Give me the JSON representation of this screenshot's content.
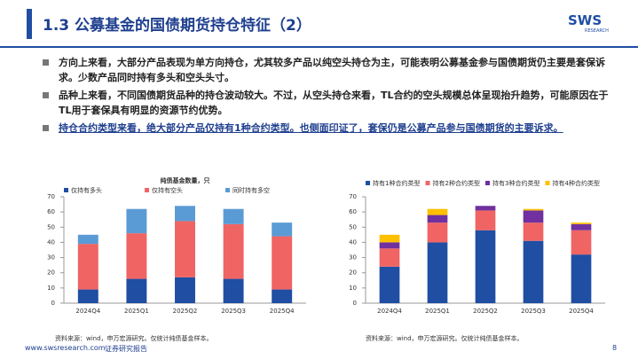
{
  "header": {
    "title": "1.3 公募基金的国债期货持仓特征（2）",
    "logo": "SWS",
    "logo_sub": "RESEARCH"
  },
  "bullets": [
    "方向上来看，大部分产品表现为单方向持仓，尤其较多产品以纯空头持仓为主，可能表明公募基金参与国债期货仍主要是套保诉求。少数产品同时持有多头和空头头寸。",
    "品种上来看，不同国债期货品种的持仓波动较大。不过，从空头持仓来看，TL合约的空头规模总体呈现抬升趋势，可能原因在于TL用于套保具有明显的资源节约优势。",
    "持仓合约类型来看，绝大部分产品仅持有1种合约类型。也侧面印证了，套保仍是公募产品参与国债期货的主要诉求。"
  ],
  "chart_data": [
    {
      "type": "stacked-bar",
      "title": "纯债基金数量，只",
      "categories": [
        "2024Q4",
        "2025Q1",
        "2025Q2",
        "2025Q3",
        "2025Q4"
      ],
      "series": [
        {
          "name": "仅持有多头",
          "color": "#1f4ea3",
          "values": [
            9,
            16,
            17,
            16,
            9
          ]
        },
        {
          "name": "仅持有空头",
          "color": "#f06464",
          "values": [
            30,
            30,
            37,
            36,
            35
          ]
        },
        {
          "name": "同时持有多空",
          "color": "#5b9bd5",
          "values": [
            6,
            16,
            10,
            10,
            9
          ]
        }
      ],
      "ylim": [
        0,
        70
      ],
      "yticks": [
        0,
        10,
        20,
        30,
        40,
        50,
        60,
        70
      ],
      "source": "资料来源：wind，申万宏源研究。仅统计纯债基金样本。"
    },
    {
      "type": "stacked-bar",
      "categories": [
        "2024Q4",
        "2025Q1",
        "2025Q2",
        "2025Q3",
        "2025Q4"
      ],
      "series": [
        {
          "name": "持有1种合约类型",
          "color": "#1f4ea3",
          "values": [
            24,
            40,
            48,
            41,
            32
          ]
        },
        {
          "name": "持有2种合约类型",
          "color": "#f06464",
          "values": [
            12,
            13,
            13,
            12,
            16
          ]
        },
        {
          "name": "持有3种合约类型",
          "color": "#7030a0",
          "values": [
            4,
            5,
            3,
            8,
            4
          ]
        },
        {
          "name": "持有4种合约类型",
          "color": "#ffc000",
          "values": [
            5,
            4,
            0,
            1,
            1
          ]
        }
      ],
      "ylim": [
        0,
        70
      ],
      "yticks": [
        0,
        10,
        20,
        30,
        40,
        50,
        60,
        70
      ],
      "source": "资料来源：wind，申万宏源研究。仅统计纯债基金样本。"
    }
  ],
  "footer": {
    "site": "www.swsresearch.com",
    "label": "证券研究报告",
    "page": "8"
  }
}
